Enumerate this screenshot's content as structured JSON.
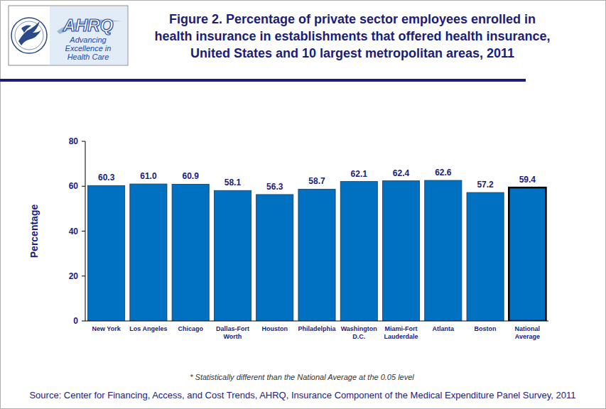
{
  "logo": {
    "name": "AHRQ",
    "tagline": [
      "Advancing",
      "Excellence in",
      "Health Care"
    ]
  },
  "chart_data": {
    "type": "bar",
    "title": "Figure 2. Percentage of private sector employees enrolled in\nhealth insurance in establishments that offered health insurance,\nUnited States and 10 largest metropolitan areas, 2011",
    "y_label": "Percentage",
    "categories": [
      "New York",
      "Los Angeles",
      "Chicago",
      "Dallas-Fort Worth",
      "Houston",
      "Philadelphia",
      "Washington D.C.",
      "Miami-Fort Lauderdale",
      "Atlanta",
      "Boston",
      "National Average"
    ],
    "values": [
      60.3,
      61.0,
      60.9,
      58.1,
      56.3,
      58.7,
      62.1,
      62.4,
      62.6,
      57.2,
      59.4
    ],
    "value_labels": [
      "60.3",
      "61.0",
      "60.9",
      "58.1",
      "56.3",
      "58.7",
      "62.1",
      "62.4",
      "62.6",
      "57.2",
      "59.4"
    ],
    "color": "#0070c0",
    "ylim": [
      0,
      80
    ],
    "yticks": [
      0,
      20,
      40,
      60,
      80
    ],
    "grid": false,
    "data_labels": true,
    "note": "* Statistically different than the National Average at the 0.05 level",
    "source": "Source: Center for Financing, Access, and Cost Trends, AHRQ, Insurance Component of the Medical Expenditure Panel Survey, 2011"
  }
}
